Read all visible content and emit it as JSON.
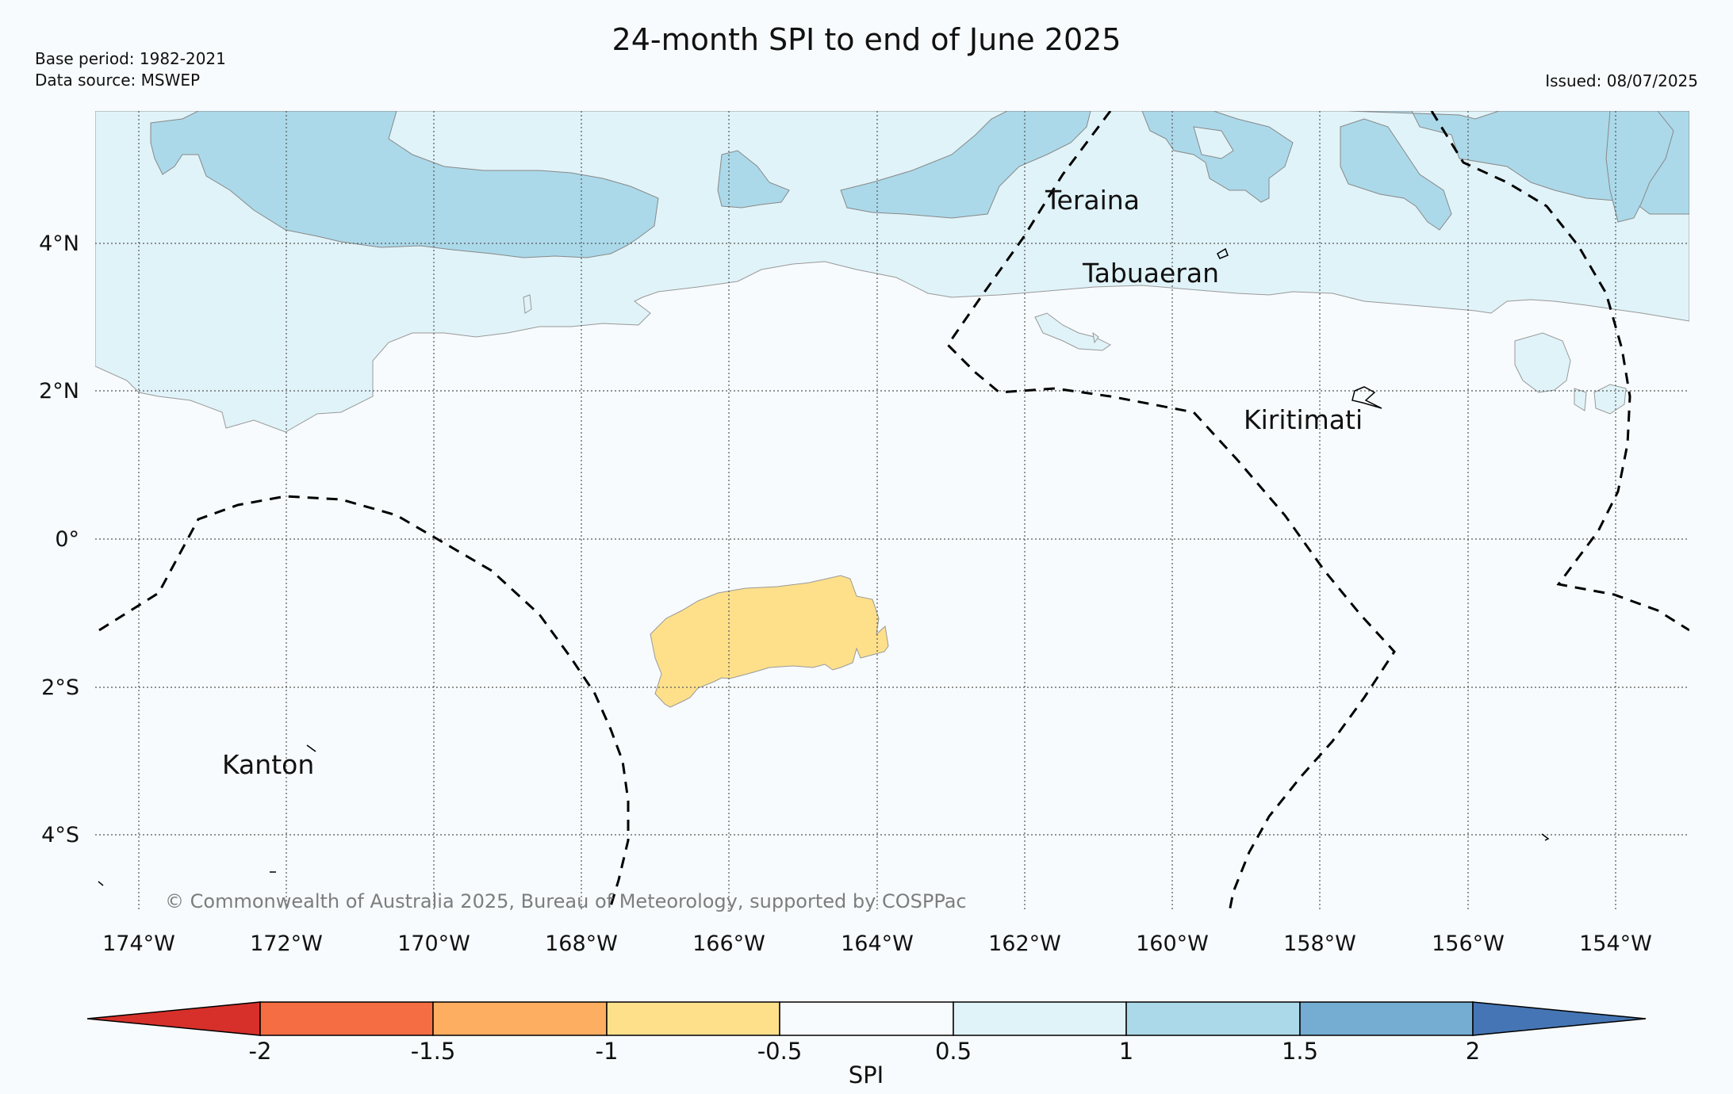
{
  "header": {
    "title": "24-month SPI to end of June 2025",
    "base_period": "Base period: 1982-2021",
    "data_source": "Data source: MSWEP",
    "issued": "Issued: 08/07/2025"
  },
  "map": {
    "lat_labels": [
      "4°N",
      "2°N",
      "0°",
      "2°S",
      "4°S"
    ],
    "lon_labels": [
      "174°W",
      "172°W",
      "170°W",
      "168°W",
      "166°W",
      "164°W",
      "162°W",
      "160°W",
      "158°W",
      "156°W",
      "154°W"
    ],
    "places": [
      "Teraina",
      "Tabuaeran",
      "Kiritimati",
      "Kanton"
    ],
    "copyright": "© Commonwealth of Australia 2025, Bureau of Meteorology, supported by COSPPac",
    "grid": "dotted",
    "boundary_style": "dashed"
  },
  "colorbar": {
    "label": "SPI",
    "ticks": [
      "-2",
      "-1.5",
      "-1",
      "-0.5",
      "0.5",
      "1",
      "1.5",
      "2"
    ],
    "colors": {
      "below_-2": "#d7302a",
      "-2_to_-1.5": "#f46d43",
      "-1.5_to_-1": "#fdae61",
      "-1_to_-0.5": "#fee08b",
      "-0.5_to_0.5": "#f7fbfd",
      "0.5_to_1": "#e0f3f8",
      "1_to_1.5": "#abd9e9",
      "1.5_to_2": "#74add1",
      "above_2": "#4575b4"
    }
  }
}
